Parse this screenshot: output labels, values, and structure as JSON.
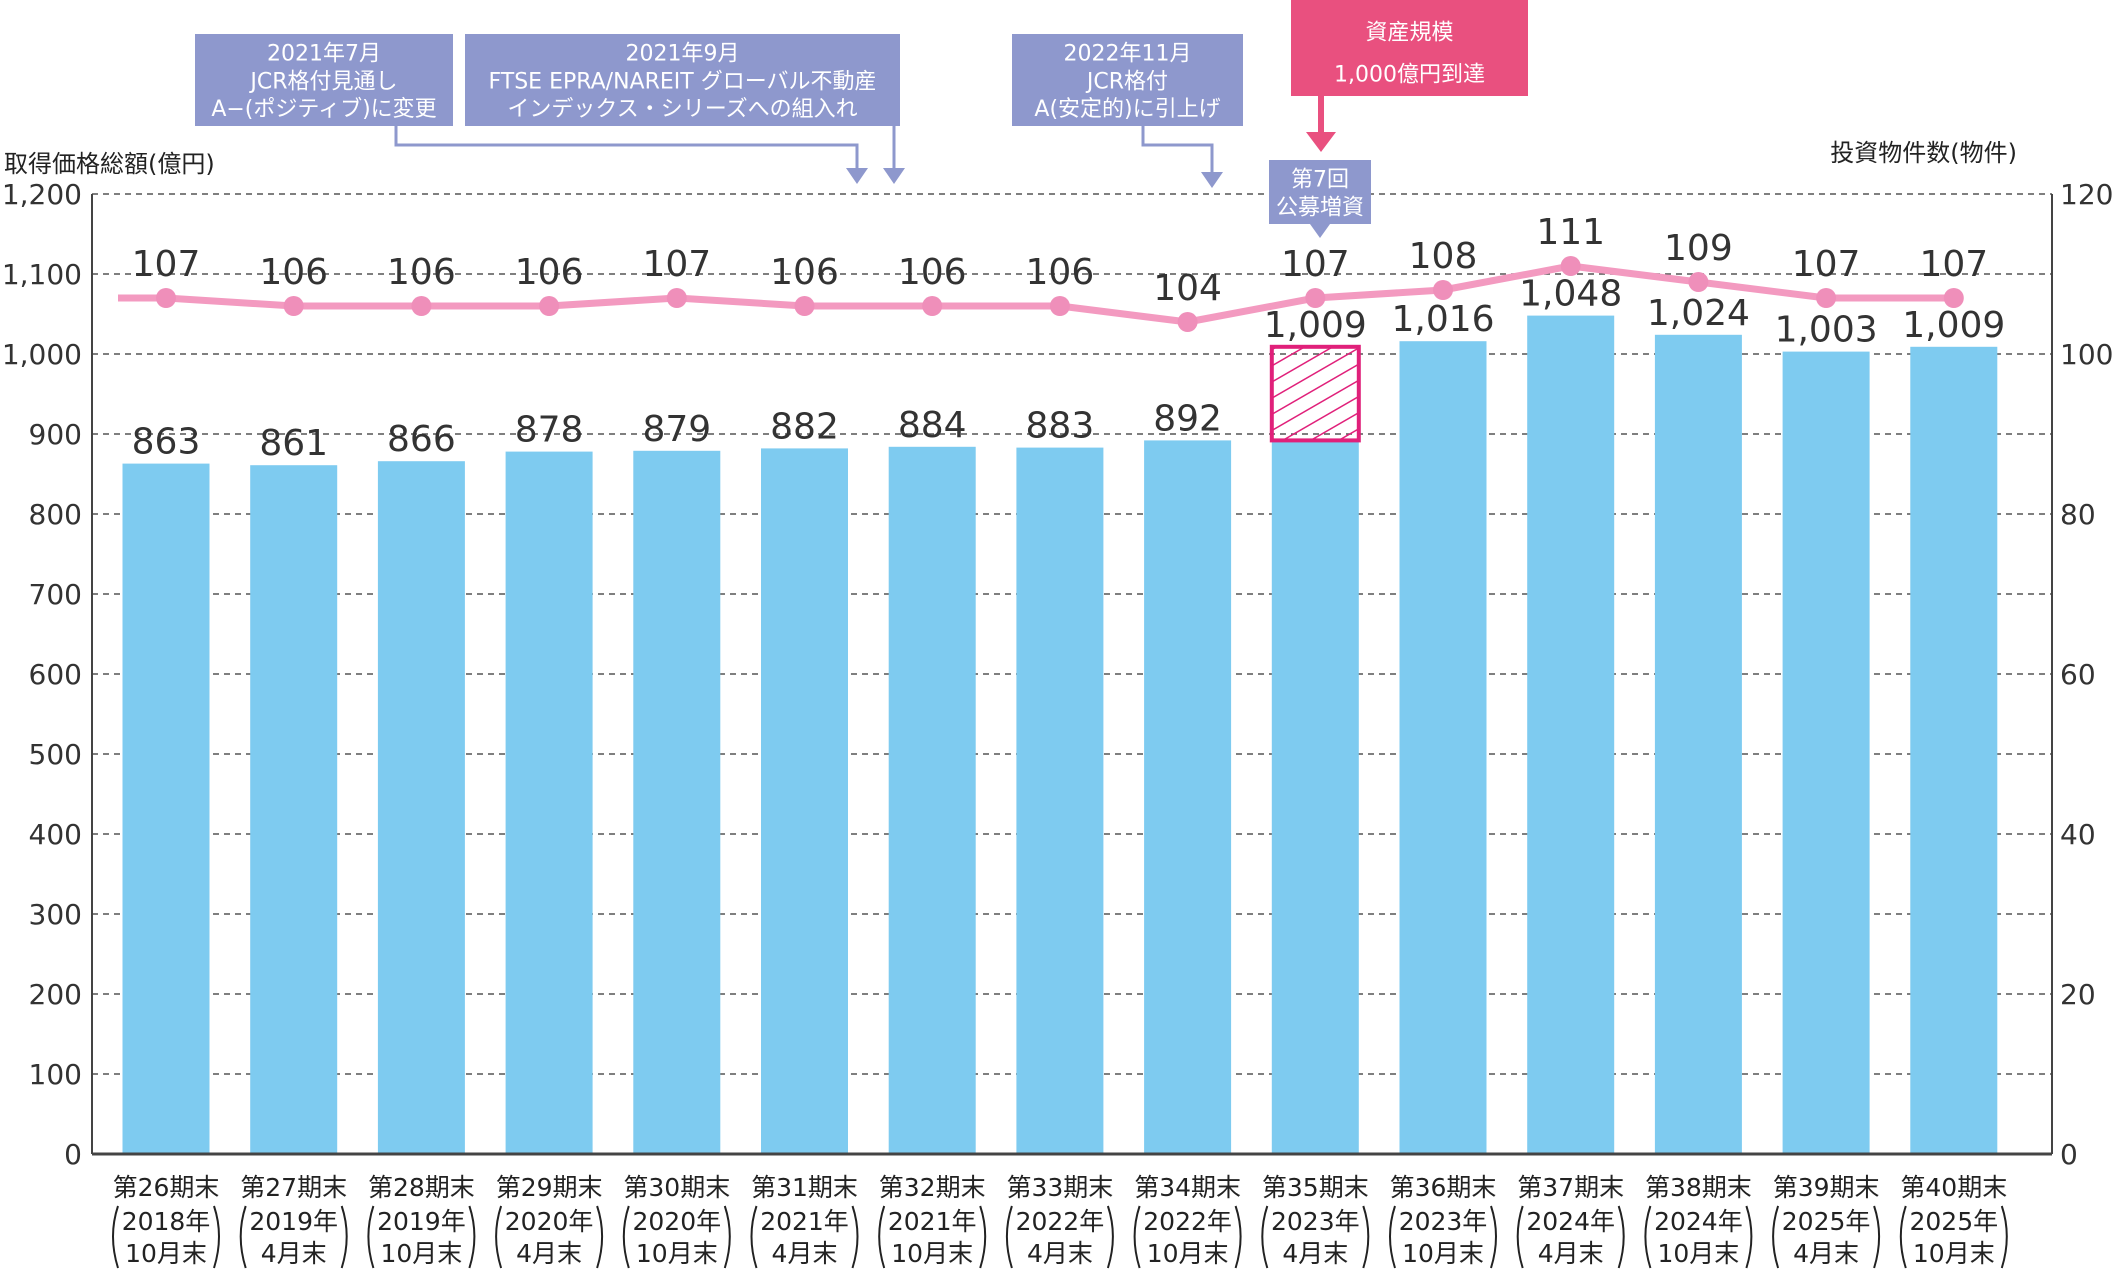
{
  "chart_data": {
    "type": "bar",
    "left_axis_title": "取得価格総額(億円)",
    "right_axis_title": "投資物件数(物件)",
    "ylim": [
      0,
      1200
    ],
    "y_ticks": [
      "0",
      "100",
      "200",
      "300",
      "400",
      "500",
      "600",
      "700",
      "800",
      "900",
      "1,000",
      "1,100",
      "1,200"
    ],
    "y2lim": [
      0,
      120
    ],
    "y2_ticks": [
      "0",
      "20",
      "40",
      "60",
      "80",
      "100",
      "120"
    ],
    "grid": "horizontal dashed",
    "categories": [
      {
        "period": "第26期末",
        "year": "2018年",
        "month": "10月末"
      },
      {
        "period": "第27期末",
        "year": "2019年",
        "month": "4月末"
      },
      {
        "period": "第28期末",
        "year": "2019年",
        "month": "10月末"
      },
      {
        "period": "第29期末",
        "year": "2020年",
        "month": "4月末"
      },
      {
        "period": "第30期末",
        "year": "2020年",
        "month": "10月末"
      },
      {
        "period": "第31期末",
        "year": "2021年",
        "month": "4月末"
      },
      {
        "period": "第32期末",
        "year": "2021年",
        "month": "10月末"
      },
      {
        "period": "第33期末",
        "year": "2022年",
        "month": "4月末"
      },
      {
        "period": "第34期末",
        "year": "2022年",
        "month": "10月末"
      },
      {
        "period": "第35期末",
        "year": "2023年",
        "month": "4月末"
      },
      {
        "period": "第36期末",
        "year": "2023年",
        "month": "10月末"
      },
      {
        "period": "第37期末",
        "year": "2024年",
        "month": "4月末"
      },
      {
        "period": "第38期末",
        "year": "2024年",
        "month": "10月末"
      },
      {
        "period": "第39期末",
        "year": "2025年",
        "month": "4月末"
      },
      {
        "period": "第40期末",
        "year": "2025年",
        "month": "10月末"
      }
    ],
    "series": [
      {
        "axis": "left",
        "type": "bar",
        "values": [
          863,
          861,
          866,
          878,
          879,
          882,
          884,
          883,
          892,
          1009,
          1016,
          1048,
          1024,
          1003,
          1009
        ],
        "labels": [
          "863",
          "861",
          "866",
          "878",
          "879",
          "882",
          "884",
          "883",
          "892",
          "1,009",
          "1,016",
          "1,048",
          "1,024",
          "1,003",
          "1,009"
        ]
      },
      {
        "axis": "right",
        "type": "line",
        "values": [
          107,
          106,
          106,
          106,
          107,
          106,
          106,
          106,
          104,
          107,
          108,
          111,
          109,
          107,
          107
        ],
        "labels": [
          "107",
          "106",
          "106",
          "106",
          "107",
          "106",
          "106",
          "106",
          "104",
          "107",
          "108",
          "111",
          "109",
          "107",
          "107"
        ]
      }
    ],
    "hatched_segment": {
      "category_index": 9,
      "from": 892,
      "to": 1009
    },
    "highlight_last_index": 14,
    "annotations": [
      {
        "lines": [
          "2021年7月",
          "JCR格付見通し",
          "A−(ポジティブ)に変更"
        ]
      },
      {
        "lines": [
          "2021年9月",
          "FTSE EPRA/NAREIT グローバル不動産",
          "インデックス・シリーズへの組入れ"
        ]
      },
      {
        "lines": [
          "2022年11月",
          "JCR格付",
          "A(安定的)に引上げ"
        ]
      },
      {
        "lines": [
          "資産規模",
          "1,000億円到達"
        ]
      },
      {
        "lines": [
          "第7回",
          "公募増資"
        ]
      }
    ],
    "colors": {
      "bar": "#7ecbf0",
      "line": "#f39ac0",
      "marker": "#ef8fba",
      "annotation": "#8e98cd",
      "milestone": "#e9507f",
      "hatch": "#e0207a",
      "highlight_text": "#c8102e",
      "grid": "#555555"
    }
  }
}
